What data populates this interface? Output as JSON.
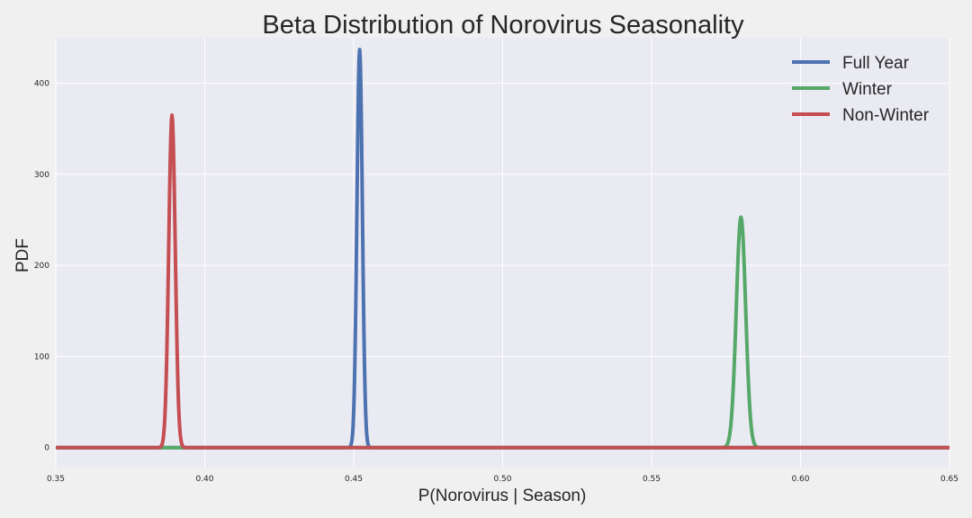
{
  "chart_data": {
    "type": "line",
    "title": "Beta Distribution of Norovirus Seasonality",
    "xlabel": "P(Norovirus | Season)",
    "ylabel": "PDF",
    "xlim": [
      0.35,
      0.65
    ],
    "ylim": [
      -22,
      450
    ],
    "x_ticks": [
      "0.35",
      "0.40",
      "0.45",
      "0.50",
      "0.55",
      "0.60",
      "0.65"
    ],
    "y_ticks": [
      "0",
      "100",
      "200",
      "300",
      "400"
    ],
    "grid": true,
    "legend_position": "top-right",
    "series": [
      {
        "name": "Full Year",
        "color": "#4c72b0",
        "peak_x": 0.452,
        "peak_y": 437
      },
      {
        "name": "Winter",
        "color": "#55a868",
        "peak_x": 0.58,
        "peak_y": 253
      },
      {
        "name": "Non-Winter",
        "color": "#c44e52",
        "peak_x": 0.389,
        "peak_y": 365
      }
    ]
  }
}
